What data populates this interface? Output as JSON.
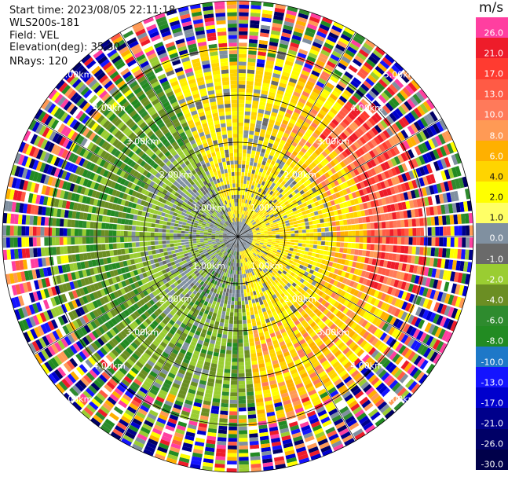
{
  "header": {
    "start_time": "Start time: 2023/08/05 22:11:18",
    "instrument": "WLS200s-181",
    "field": "Field: VEL",
    "elevation": "Elevation(deg): 35.30",
    "nrays": "NRays: 120"
  },
  "colorbar": {
    "unit": "m/s",
    "labels": [
      "26.0",
      "21.0",
      "17.0",
      "13.0",
      "10.0",
      "8.0",
      "6.0",
      "4.0",
      "2.0",
      "1.0",
      "0.0",
      "-1.0",
      "-2.0",
      "-4.0",
      "-6.0",
      "-8.0",
      "-10.0",
      "-13.0",
      "-17.0",
      "-21.0",
      "-26.0",
      "-30.0"
    ],
    "colors": [
      "#ff3fa0",
      "#ee1c2a",
      "#ff3b30",
      "#ff5b45",
      "#ff7a5a",
      "#ff9a55",
      "#ffb000",
      "#ffd400",
      "#ffff00",
      "#ffff66",
      "#8090a0",
      "#6a6a6a",
      "#9acd32",
      "#6b8e23",
      "#2e8b2e",
      "#228b22",
      "#1e78c8",
      "#1414ff",
      "#0000cd",
      "#00008b",
      "#000066",
      "#00004a"
    ]
  },
  "range_rings": {
    "labels": [
      "1.00km",
      "2.00km",
      "3.00km",
      "4.00km",
      "5.00km"
    ]
  },
  "chart_data": {
    "type": "ppi",
    "field": "VEL",
    "unit": "m/s",
    "nrays": 120,
    "elevation_deg": 35.3,
    "range_rings_km": [
      1,
      2,
      3,
      4,
      5
    ],
    "vmin": -30.0,
    "vmax": 26.0
  }
}
